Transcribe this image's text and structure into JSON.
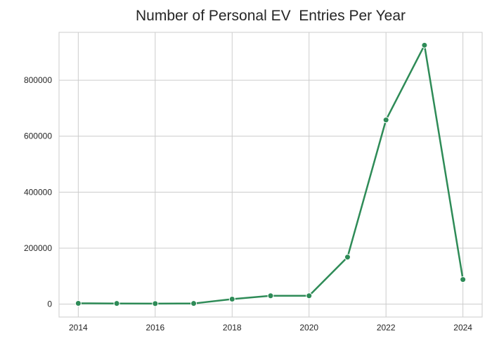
{
  "chart_data": {
    "type": "line",
    "title": "Number of Personal EV  Entries Per Year",
    "xlabel": "",
    "ylabel": "",
    "x": [
      2014,
      2015,
      2016,
      2017,
      2018,
      2019,
      2020,
      2021,
      2022,
      2023,
      2024
    ],
    "series": [
      {
        "values": [
          3000,
          2500,
          2000,
          2500,
          18000,
          30000,
          30000,
          168000,
          658000,
          925000,
          88000
        ],
        "color": "#2e8b57"
      }
    ],
    "xticks": [
      "2014",
      "2016",
      "2018",
      "2020",
      "2022",
      "2024"
    ],
    "yticks": [
      "0",
      "200000",
      "400000",
      "600000",
      "800000"
    ],
    "xlim": [
      2013.5,
      2024.5
    ],
    "ylim": [
      -46000,
      971000
    ],
    "grid": true,
    "legend": "none",
    "marker": "circle"
  }
}
